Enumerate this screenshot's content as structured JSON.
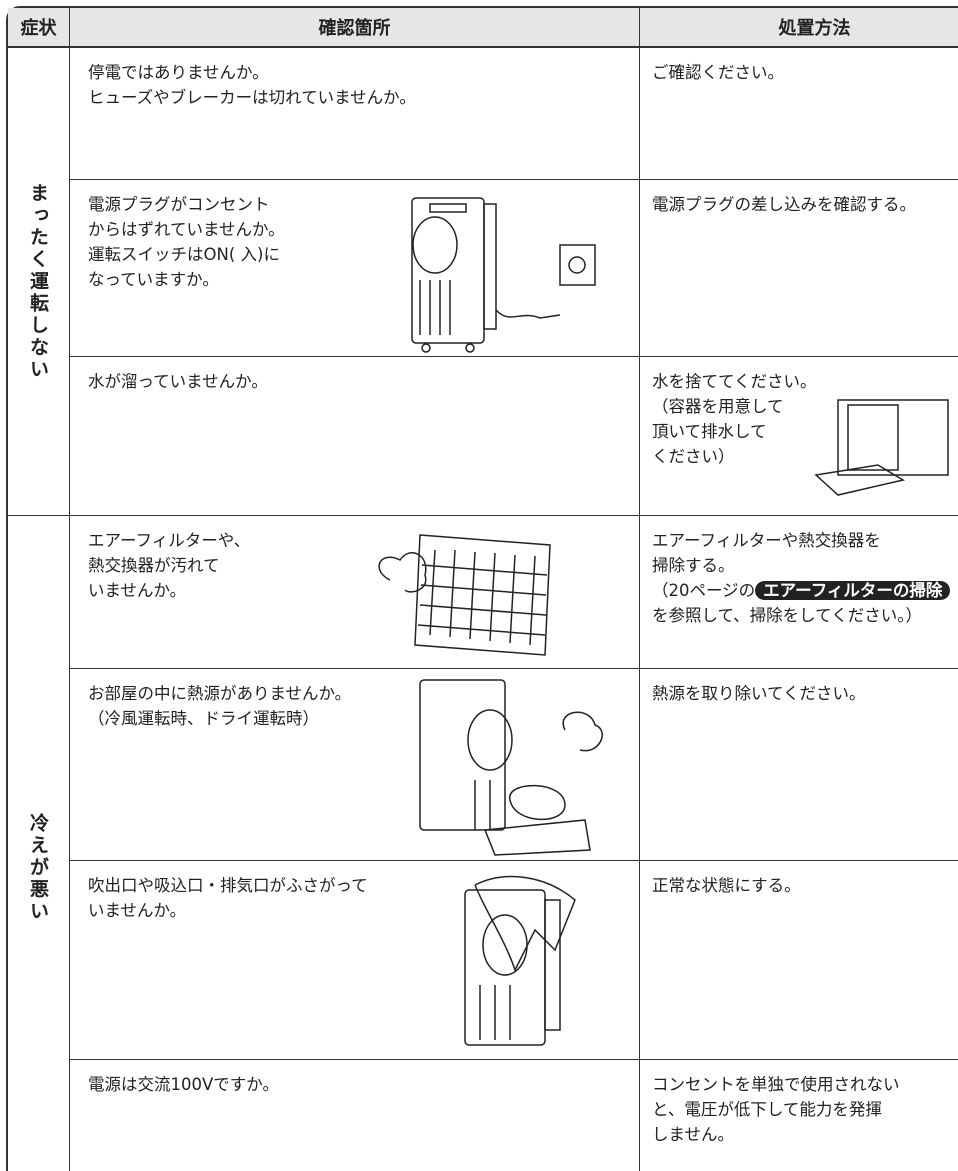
{
  "header": {
    "columns": [
      "症状",
      "確認箇所",
      "処置方法"
    ]
  },
  "groups": [
    {
      "symptom": "まったく運転しない",
      "rows": [
        {
          "check": [
            "停電ではありませんか。",
            "ヒューズやブレーカーは切れていませんか。"
          ],
          "remedy": [
            "ご確認ください。"
          ]
        },
        {
          "check": [
            "電源プラグがコンセント",
            "からはずれていませんか。",
            "運転スイッチはON( 入)に",
            "なっていますか。"
          ],
          "remedy": [
            "電源プラグの差し込みを確認する。"
          ]
        },
        {
          "check": [
            "水が溜っていませんか。"
          ],
          "remedy": [
            "水を捨ててください。",
            "（容器を用意して",
            "頂いて排水して",
            "ください）"
          ]
        }
      ]
    },
    {
      "symptom": "冷えが悪い",
      "rows": [
        {
          "check": [
            "エアーフィルターや、",
            "熱交換器が汚れて",
            "いませんか。"
          ],
          "remedy": [
            "エアーフィルターや熱交換器を",
            "掃除する。"
          ],
          "remedy_ref": {
            "before": "（20ページの",
            "link": "エアーフィルターの掃除",
            "after": "を参照して、掃除をしてください。）"
          }
        },
        {
          "check": [
            "お部屋の中に熱源がありませんか。",
            "（冷風運転時、ドライ運転時）"
          ],
          "remedy": [
            "熱源を取り除いてください。"
          ]
        },
        {
          "check": [
            "吹出口や吸込口・排気口がふさがって",
            "いませんか。"
          ],
          "remedy": [
            "正常な状態にする。"
          ]
        },
        {
          "check": [
            "電源は交流100Vですか。"
          ],
          "remedy": [
            "コンセントを単独で使用されない",
            "と、電圧が低下して能力を発揮",
            "しません。"
          ]
        }
      ]
    }
  ]
}
